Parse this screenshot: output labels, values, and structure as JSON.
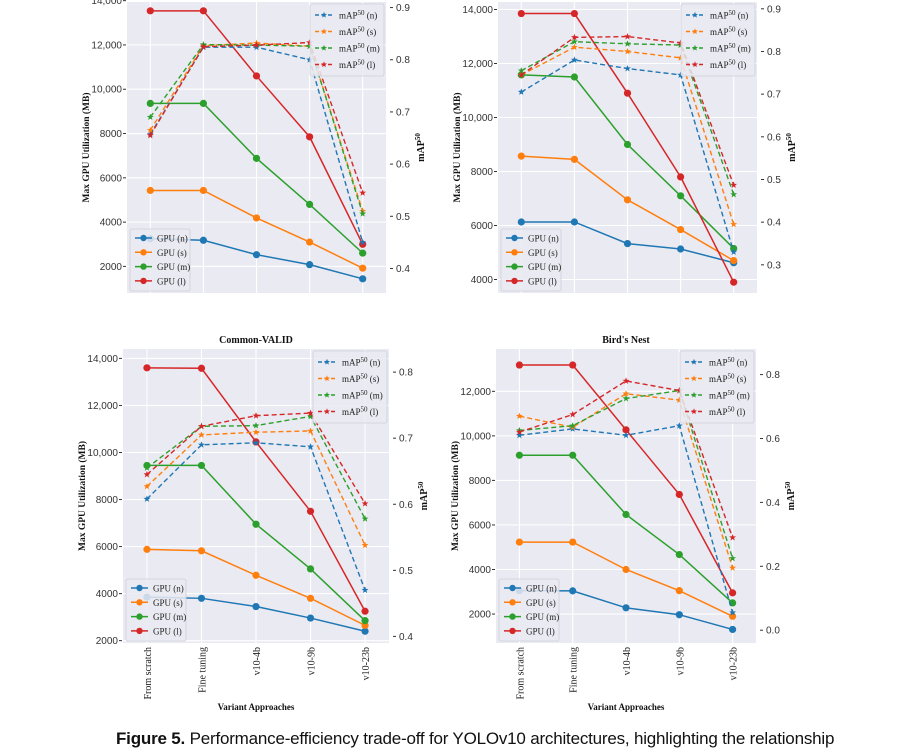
{
  "caption": {
    "label": "Figure 5.",
    "text": "Performance-efficiency trade-off for YOLOv10 architectures, highlighting the relationship"
  },
  "colors": {
    "n": "#1f77b4",
    "s": "#ff7f0e",
    "m": "#2ca02c",
    "l": "#d62728",
    "plot_bg": "#eaeaf2",
    "grid": "#ffffff"
  },
  "chart_data": [
    {
      "type": "line",
      "title": "",
      "xlabel": "",
      "ylabel": "Max GPU Utilization (MB)",
      "y2label": "mAP50",
      "categories": [
        "From scratch",
        "Fine tuning",
        "v10-4b",
        "v10-9b",
        "v10-23b"
      ],
      "show_xticks": false,
      "ylim": [
        800,
        14300
      ],
      "yticks": [
        2000,
        4000,
        6000,
        8000,
        10000,
        12000,
        14000
      ],
      "ytick_labels": [
        "2000",
        "4000",
        "6000",
        "8000",
        "10,000",
        "12,000",
        "14,000"
      ],
      "y2lim": [
        0.353,
        0.926
      ],
      "y2ticks": [
        0.4,
        0.5,
        0.6,
        0.7,
        0.8,
        0.9
      ],
      "y2tick_labels": [
        "0.4",
        "0.5",
        "0.6",
        "0.7",
        "0.8",
        "0.9"
      ],
      "grid": true,
      "legend_gpu": "bottom-left",
      "legend_map": "top-right",
      "gpu_series": [
        {
          "key": "n",
          "name": "GPU (n)",
          "values": [
            3250,
            3180,
            2530,
            2080,
            1440
          ]
        },
        {
          "key": "s",
          "name": "GPU (s)",
          "values": [
            5430,
            5430,
            4190,
            3100,
            1920
          ]
        },
        {
          "key": "m",
          "name": "GPU (m)",
          "values": [
            9360,
            9360,
            6880,
            4800,
            2600
          ]
        },
        {
          "key": "l",
          "name": "GPU (l)",
          "values": [
            13540,
            13540,
            10600,
            7850,
            3000
          ]
        }
      ],
      "map_series": [
        {
          "key": "n",
          "name": "mAP50 (n)",
          "values": [
            0.657,
            0.824,
            0.824,
            0.8,
            0.45
          ]
        },
        {
          "key": "s",
          "name": "mAP50 (s)",
          "values": [
            0.665,
            0.827,
            0.832,
            0.826,
            0.51
          ]
        },
        {
          "key": "m",
          "name": "mAP50 (m)",
          "values": [
            0.69,
            0.829,
            0.828,
            0.826,
            0.505
          ]
        },
        {
          "key": "l",
          "name": "mAP50 (l)",
          "values": [
            0.655,
            0.825,
            0.828,
            0.833,
            0.545
          ]
        }
      ]
    },
    {
      "type": "line",
      "title": "",
      "xlabel": "",
      "ylabel": "Max GPU Utilization (MB)",
      "y2label": "mAP50",
      "categories": [
        "From scratch",
        "Fine tuning",
        "v10-4b",
        "v10-9b",
        "v10-23b"
      ],
      "show_xticks": false,
      "ylim": [
        3500,
        14500
      ],
      "yticks": [
        4000,
        6000,
        8000,
        10000,
        12000,
        14000
      ],
      "ytick_labels": [
        "4000",
        "6000",
        "8000",
        "10,000",
        "12,000",
        "14,000"
      ],
      "y2lim": [
        0.234,
        0.93
      ],
      "y2ticks": [
        0.3,
        0.4,
        0.5,
        0.6,
        0.7,
        0.8,
        0.9
      ],
      "y2tick_labels": [
        "0.3",
        "0.4",
        "0.5",
        "0.6",
        "0.7",
        "0.8",
        "0.9"
      ],
      "grid": true,
      "legend_gpu": "bottom-left",
      "legend_map": "top-right",
      "gpu_series": [
        {
          "key": "n",
          "name": "GPU (n)",
          "values": [
            6130,
            6130,
            5330,
            5130,
            4620
          ]
        },
        {
          "key": "s",
          "name": "GPU (s)",
          "values": [
            8570,
            8450,
            6950,
            5850,
            4700
          ]
        },
        {
          "key": "m",
          "name": "GPU (m)",
          "values": [
            11580,
            11500,
            9000,
            7100,
            5150
          ]
        },
        {
          "key": "l",
          "name": "GPU (l)",
          "values": [
            13850,
            13850,
            10900,
            7800,
            3900
          ]
        }
      ],
      "map_series": [
        {
          "key": "n",
          "name": "mAP50 (n)",
          "values": [
            0.705,
            0.78,
            0.76,
            0.745,
            0.33
          ]
        },
        {
          "key": "s",
          "name": "mAP50 (s)",
          "values": [
            0.745,
            0.81,
            0.8,
            0.785,
            0.395
          ]
        },
        {
          "key": "m",
          "name": "mAP50 (m)",
          "values": [
            0.755,
            0.823,
            0.818,
            0.815,
            0.465
          ]
        },
        {
          "key": "l",
          "name": "mAP50 (l)",
          "values": [
            0.745,
            0.833,
            0.835,
            0.82,
            0.487
          ]
        }
      ]
    },
    {
      "type": "line",
      "title": "Common-VALID",
      "xlabel": "Variant Approaches",
      "ylabel": "Max GPU Utilization (MB)",
      "y2label": "mAP50",
      "categories": [
        "From scratch",
        "Fine tuning",
        "v10-4b",
        "v10-9b",
        "v10-23b"
      ],
      "show_xticks": true,
      "ylim": [
        1900,
        14400
      ],
      "yticks": [
        2000,
        4000,
        6000,
        8000,
        10000,
        12000,
        14000
      ],
      "ytick_labels": [
        "2000",
        "4000",
        "6000",
        "8000",
        "10,000",
        "12,000",
        "14,000"
      ],
      "y2lim": [
        0.39,
        0.835
      ],
      "y2ticks": [
        0.4,
        0.5,
        0.6,
        0.7,
        0.8
      ],
      "y2tick_labels": [
        "0.4",
        "0.5",
        "0.6",
        "0.7",
        "0.8"
      ],
      "grid": true,
      "legend_gpu": "bottom-left",
      "legend_map": "top-right",
      "gpu_series": [
        {
          "key": "n",
          "name": "GPU (n)",
          "values": [
            3850,
            3800,
            3450,
            2960,
            2400
          ]
        },
        {
          "key": "s",
          "name": "GPU (s)",
          "values": [
            5880,
            5820,
            4780,
            3800,
            2650
          ]
        },
        {
          "key": "m",
          "name": "GPU (m)",
          "values": [
            9450,
            9450,
            6950,
            5050,
            2850
          ]
        },
        {
          "key": "l",
          "name": "GPU (l)",
          "values": [
            13600,
            13580,
            10450,
            7500,
            3250
          ]
        }
      ],
      "map_series": [
        {
          "key": "n",
          "name": "mAP50 (n)",
          "values": [
            0.608,
            0.69,
            0.693,
            0.687,
            0.47
          ]
        },
        {
          "key": "s",
          "name": "mAP50 (s)",
          "values": [
            0.627,
            0.705,
            0.709,
            0.711,
            0.538
          ]
        },
        {
          "key": "m",
          "name": "mAP50 (m)",
          "values": [
            0.655,
            0.718,
            0.719,
            0.733,
            0.578
          ]
        },
        {
          "key": "l",
          "name": "mAP50 (l)",
          "values": [
            0.645,
            0.718,
            0.734,
            0.738,
            0.601
          ]
        }
      ]
    },
    {
      "type": "line",
      "title": "Bird's Nest",
      "xlabel": "Variant Approaches",
      "ylabel": "Max GPU Utilization (MB)",
      "y2label": "mAP50",
      "categories": [
        "From scratch",
        "Fine tuning",
        "v10-4b",
        "v10-9b",
        "v10-23b"
      ],
      "show_xticks": true,
      "ylim": [
        700,
        13900
      ],
      "yticks": [
        2000,
        4000,
        6000,
        8000,
        10000,
        12000
      ],
      "ytick_labels": [
        "2000",
        "4000",
        "6000",
        "8000",
        "10,000",
        "12,000"
      ],
      "y2lim": [
        -0.04,
        0.88
      ],
      "y2ticks": [
        0.0,
        0.2,
        0.4,
        0.6,
        0.8
      ],
      "y2tick_labels": [
        "0.0",
        "0.2",
        "0.4",
        "0.6",
        "0.8"
      ],
      "grid": true,
      "legend_gpu": "bottom-left",
      "legend_map": "top-right",
      "gpu_series": [
        {
          "key": "n",
          "name": "GPU (n)",
          "values": [
            3050,
            3040,
            2280,
            1970,
            1310
          ]
        },
        {
          "key": "s",
          "name": "GPU (s)",
          "values": [
            5230,
            5230,
            4000,
            3050,
            1900
          ]
        },
        {
          "key": "m",
          "name": "GPU (m)",
          "values": [
            9130,
            9130,
            6470,
            4670,
            2500
          ]
        },
        {
          "key": "l",
          "name": "GPU (l)",
          "values": [
            13180,
            13180,
            10270,
            7370,
            2950
          ]
        }
      ],
      "map_series": [
        {
          "key": "n",
          "name": "mAP50 (n)",
          "values": [
            0.61,
            0.63,
            0.61,
            0.64,
            0.055
          ]
        },
        {
          "key": "s",
          "name": "mAP50 (s)",
          "values": [
            0.67,
            0.635,
            0.74,
            0.72,
            0.195
          ]
        },
        {
          "key": "m",
          "name": "mAP50 (m)",
          "values": [
            0.625,
            0.64,
            0.725,
            0.75,
            0.225
          ]
        },
        {
          "key": "l",
          "name": "mAP50 (l)",
          "values": [
            0.62,
            0.675,
            0.78,
            0.75,
            0.29
          ]
        }
      ]
    }
  ]
}
